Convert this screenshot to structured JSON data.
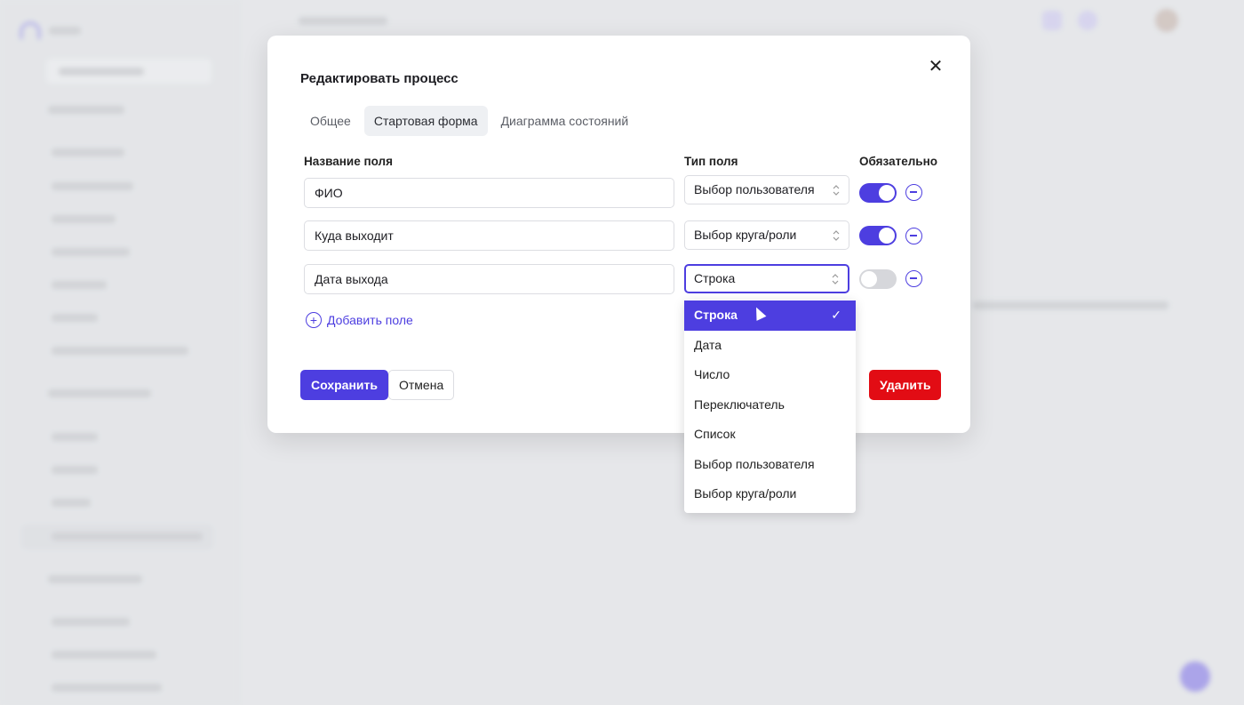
{
  "colors": {
    "accent": "#4d3ee0",
    "danger": "#e20c14"
  },
  "modal": {
    "title": "Редактировать процесс",
    "close_icon": "close-icon",
    "tabs": [
      {
        "label": "Общее"
      },
      {
        "label": "Стартовая форма",
        "active": true
      },
      {
        "label": "Диаграмма состояний"
      }
    ],
    "headers": {
      "name": "Название поля",
      "type": "Тип поля",
      "required": "Обязательно"
    },
    "fields": [
      {
        "name": "ФИО",
        "type": "Выбор пользователя",
        "required": true
      },
      {
        "name": "Куда выходит",
        "type": "Выбор круга/роли",
        "required": true
      },
      {
        "name": "Дата выхода",
        "type": "Строка",
        "required": false
      }
    ],
    "add_field": "Добавить поле",
    "save": "Сохранить",
    "cancel": "Отмена",
    "delete": "Удалить"
  },
  "dropdown": {
    "selected": "Строка",
    "options": [
      "Строка",
      "Дата",
      "Число",
      "Переключатель",
      "Список",
      "Выбор пользователя",
      "Выбор круга/роли"
    ]
  }
}
